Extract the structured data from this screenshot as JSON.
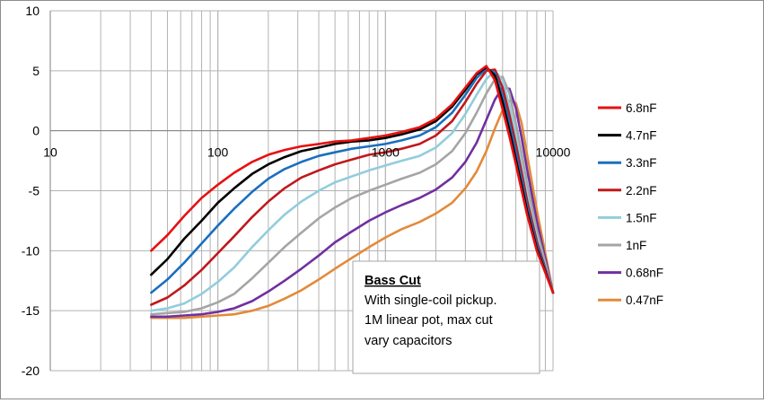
{
  "chart_data": {
    "type": "line",
    "title": "",
    "xlabel": "",
    "ylabel": "",
    "x_scale": "log",
    "xlim": [
      10,
      10000
    ],
    "ylim": [
      -20,
      10
    ],
    "grid": true,
    "legend_position": "right",
    "x_tick_labels": [
      "10",
      "100",
      "1000",
      "10000"
    ],
    "y_tick_labels": [
      "10",
      "5",
      "0",
      "-5",
      "-10",
      "-15",
      "-20"
    ],
    "annotation": {
      "title": "Bass Cut",
      "lines": [
        "With single-coil pickup.",
        "1M linear pot, max cut",
        "vary capacitors"
      ]
    },
    "x": [
      40,
      50,
      63,
      80,
      100,
      125,
      160,
      200,
      250,
      315,
      400,
      500,
      630,
      800,
      1000,
      1250,
      1600,
      2000,
      2500,
      3000,
      3500,
      4000,
      4500,
      5000,
      5500,
      6000,
      6500,
      7000,
      8000,
      10000
    ],
    "series": [
      {
        "name": "6.8nF",
        "color": "#e81010",
        "values": [
          -10,
          -8.7,
          -7.1,
          -5.6,
          -4.5,
          -3.5,
          -2.6,
          -2.0,
          -1.6,
          -1.3,
          -1.1,
          -0.9,
          -0.8,
          -0.6,
          -0.4,
          -0.1,
          0.3,
          1.0,
          2.2,
          3.6,
          4.8,
          5.4,
          4.2,
          1.8,
          -0.5,
          -2.8,
          -5,
          -7,
          -10,
          -13.5
        ]
      },
      {
        "name": "4.7nF",
        "color": "#000000",
        "values": [
          -12,
          -10.7,
          -9.0,
          -7.5,
          -6.0,
          -4.8,
          -3.6,
          -2.8,
          -2.2,
          -1.7,
          -1.4,
          -1.1,
          -0.9,
          -0.8,
          -0.6,
          -0.3,
          0.1,
          0.8,
          2.0,
          3.4,
          4.7,
          5.3,
          4.6,
          2.4,
          0.0,
          -2.4,
          -4.6,
          -6.7,
          -9.8,
          -13.5
        ]
      },
      {
        "name": "3.3nF",
        "color": "#1a6fc0",
        "values": [
          -13.5,
          -12.4,
          -11.0,
          -9.4,
          -7.9,
          -6.5,
          -5.1,
          -4.0,
          -3.2,
          -2.6,
          -2.1,
          -1.8,
          -1.5,
          -1.3,
          -1.1,
          -0.8,
          -0.4,
          0.3,
          1.5,
          3.0,
          4.4,
          5.2,
          4.8,
          2.9,
          0.6,
          -1.8,
          -4.1,
          -6.3,
          -9.5,
          -13.5
        ]
      },
      {
        "name": "2.2nF",
        "color": "#c0181c",
        "values": [
          -14.5,
          -13.9,
          -12.9,
          -11.6,
          -10.2,
          -8.8,
          -7.2,
          -5.9,
          -4.8,
          -3.9,
          -3.3,
          -2.8,
          -2.4,
          -2.0,
          -1.8,
          -1.5,
          -1.1,
          -0.4,
          0.8,
          2.4,
          3.9,
          5.0,
          5.1,
          3.6,
          1.3,
          -1.1,
          -3.5,
          -5.8,
          -9.2,
          -13.5
        ]
      },
      {
        "name": "1.5nF",
        "color": "#92cddc",
        "values": [
          -15,
          -14.8,
          -14.4,
          -13.6,
          -12.6,
          -11.4,
          -9.7,
          -8.3,
          -7.0,
          -5.9,
          -5.0,
          -4.3,
          -3.8,
          -3.3,
          -2.9,
          -2.5,
          -2.1,
          -1.4,
          -0.2,
          1.4,
          3.0,
          4.3,
          5.0,
          4.2,
          2.1,
          -0.4,
          -2.9,
          -5.3,
          -8.9,
          -13.5
        ]
      },
      {
        "name": "1nF",
        "color": "#a5a5a5",
        "values": [
          -15.3,
          -15.2,
          -15.1,
          -14.8,
          -14.3,
          -13.6,
          -12.3,
          -11.0,
          -9.7,
          -8.5,
          -7.3,
          -6.4,
          -5.6,
          -5.0,
          -4.5,
          -4.0,
          -3.5,
          -2.8,
          -1.7,
          -0.2,
          1.5,
          3.1,
          4.3,
          4.5,
          3.1,
          0.6,
          -1.9,
          -4.4,
          -8.3,
          -13.5
        ]
      },
      {
        "name": "0.68nF",
        "color": "#7030a0",
        "values": [
          -15.5,
          -15.5,
          -15.4,
          -15.3,
          -15.1,
          -14.8,
          -14.2,
          -13.4,
          -12.5,
          -11.5,
          -10.4,
          -9.3,
          -8.4,
          -7.5,
          -6.8,
          -6.2,
          -5.6,
          -4.9,
          -3.9,
          -2.6,
          -1.0,
          0.9,
          2.6,
          3.6,
          3.5,
          1.9,
          -0.6,
          -3.2,
          -7.5,
          -13.5
        ]
      },
      {
        "name": "0.47nF",
        "color": "#e38a3a",
        "values": [
          -15.6,
          -15.6,
          -15.6,
          -15.5,
          -15.4,
          -15.3,
          -15.0,
          -14.6,
          -14.0,
          -13.3,
          -12.4,
          -11.5,
          -10.6,
          -9.7,
          -8.9,
          -8.2,
          -7.6,
          -6.9,
          -6.0,
          -4.8,
          -3.4,
          -1.7,
          0.2,
          1.7,
          2.5,
          2.3,
          0.6,
          -2.0,
          -6.6,
          -13.5
        ]
      }
    ]
  }
}
